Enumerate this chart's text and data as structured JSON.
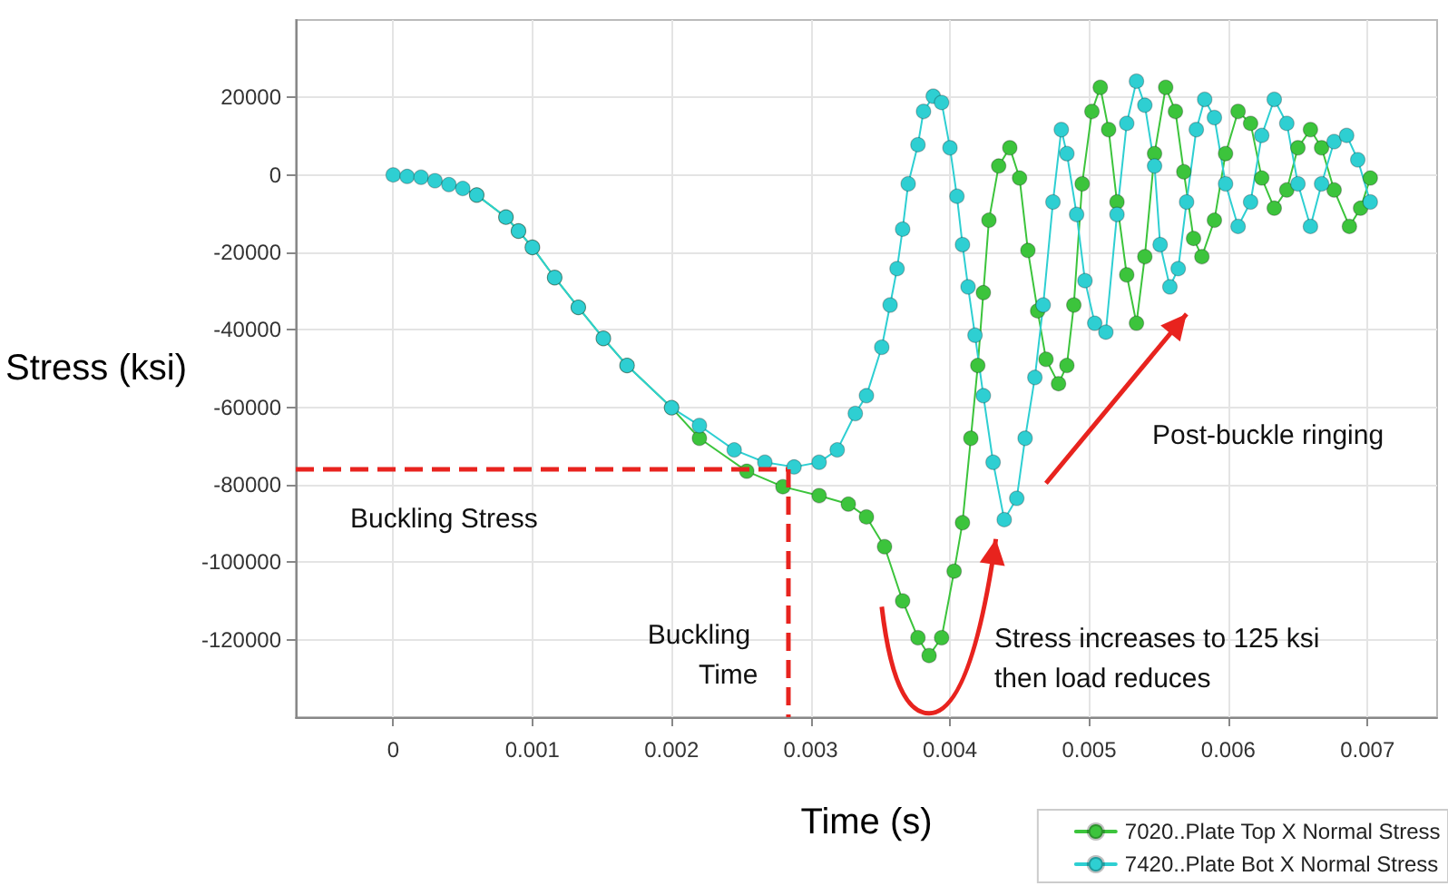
{
  "chart_data": {
    "type": "line",
    "xlabel": "Time (s)",
    "ylabel": "Stress (ksi)",
    "xlim": [
      -0.0007,
      0.0075
    ],
    "xticks": [
      0,
      0.001,
      0.002,
      0.003,
      0.004,
      0.005,
      0.006,
      0.007
    ],
    "ylim": [
      -140000,
      40000
    ],
    "yticks": [
      -120000,
      -100000,
      -80000,
      -60000,
      -40000,
      -20000,
      0,
      20000
    ],
    "grid": true,
    "legend": "bottom right",
    "marker": "circle",
    "line_style": "solid",
    "series": [
      {
        "name": "7020..Plate Top X Normal Stress",
        "color": "#3cc43c",
        "x": [
          0.0006,
          0.00081,
          0.0009,
          0.001,
          0.00116,
          0.00133,
          0.00151,
          0.00168,
          0.002,
          0.0022,
          0.00254,
          0.0028,
          0.00306,
          0.00327,
          0.0034,
          0.00353,
          0.00366,
          0.00377,
          0.00385,
          0.00394,
          0.00403,
          0.00409,
          0.00415,
          0.0042,
          0.00424,
          0.00428,
          0.00435,
          0.00443,
          0.0045,
          0.00456,
          0.00463,
          0.00469,
          0.00478,
          0.00484,
          0.00489,
          0.00495,
          0.00502,
          0.00508,
          0.00514,
          0.0052,
          0.00527,
          0.00534,
          0.0054,
          0.00547,
          0.00555,
          0.00562,
          0.00568,
          0.00575,
          0.00581,
          0.0059,
          0.00598,
          0.00607,
          0.00616,
          0.00624,
          0.00633,
          0.00642,
          0.0065,
          0.00659,
          0.00667,
          0.00676,
          0.00687,
          0.00695,
          0.00702
        ],
        "values": [
          -5200,
          -10900,
          -14500,
          -18700,
          -26500,
          -34200,
          -42200,
          -49200,
          -60100,
          -68000,
          -76500,
          -80500,
          -82800,
          -85000,
          -88300,
          -96000,
          -110000,
          -119500,
          -124100,
          -119500,
          -102300,
          -89800,
          -68000,
          -49200,
          -30400,
          -11700,
          2300,
          7000,
          -800,
          -19500,
          -35100,
          -47600,
          -53900,
          -49200,
          -33600,
          -2300,
          16400,
          22600,
          11700,
          -7000,
          -25800,
          -38300,
          -21100,
          5500,
          22600,
          16400,
          800,
          -16400,
          -21100,
          -11700,
          5500,
          16400,
          13300,
          -800,
          -8600,
          -3900,
          7000,
          11700,
          7000,
          -3900,
          -13300,
          -8600,
          -800
        ]
      },
      {
        "name": "7420..Plate Bot X Normal Stress",
        "color": "#2ecfd2",
        "x": [
          0,
          0.0001,
          0.0002,
          0.0003,
          0.0004,
          0.0005,
          0.0006,
          0.00081,
          0.0009,
          0.001,
          0.00116,
          0.00133,
          0.00151,
          0.00168,
          0.002,
          0.0022,
          0.00245,
          0.00267,
          0.00288,
          0.00306,
          0.00319,
          0.00332,
          0.0034,
          0.00351,
          0.00357,
          0.00362,
          0.00366,
          0.0037,
          0.00377,
          0.00381,
          0.00388,
          0.00394,
          0.004,
          0.00405,
          0.00409,
          0.00413,
          0.00418,
          0.00424,
          0.00431,
          0.00439,
          0.00448,
          0.00454,
          0.00461,
          0.00467,
          0.00474,
          0.0048,
          0.00484,
          0.00491,
          0.00497,
          0.00504,
          0.00512,
          0.0052,
          0.00527,
          0.00534,
          0.0054,
          0.00547,
          0.00551,
          0.00558,
          0.00564,
          0.0057,
          0.00577,
          0.00583,
          0.0059,
          0.00598,
          0.00607,
          0.00616,
          0.00624,
          0.00633,
          0.00642,
          0.0065,
          0.00659,
          0.00667,
          0.00676,
          0.00685,
          0.00693,
          0.00702
        ],
        "values": [
          0,
          -400,
          -600,
          -1500,
          -2500,
          -3500,
          -5200,
          -10900,
          -14500,
          -18700,
          -26500,
          -34200,
          -42200,
          -49200,
          -60100,
          -64700,
          -71000,
          -74200,
          -75400,
          -74200,
          -71000,
          -61600,
          -57000,
          -44500,
          -33600,
          -24200,
          -14000,
          -2300,
          7800,
          16400,
          20300,
          18700,
          7000,
          -5500,
          -18000,
          -28900,
          -41400,
          -57000,
          -74200,
          -89000,
          -83500,
          -68000,
          -52300,
          -33600,
          -7000,
          11700,
          5500,
          -10200,
          -27300,
          -38300,
          -40600,
          -10200,
          13300,
          24200,
          18000,
          2300,
          -18000,
          -28900,
          -24200,
          -7000,
          11700,
          19500,
          14800,
          -2300,
          -13300,
          -7000,
          10200,
          19500,
          13300,
          -2300,
          -13300,
          -2300,
          8600,
          10200,
          3900,
          -7000
        ]
      }
    ],
    "ref_lines": [
      {
        "axis": "y",
        "value": -76000,
        "label": "Buckling Stress",
        "color": "#e8231e",
        "line_style": "dashed"
      },
      {
        "axis": "x",
        "value": 0.00283,
        "label": "Buckling Time",
        "color": "#e8231e",
        "line_style": "dashed"
      }
    ],
    "annotations": [
      "Stress increases to 125 ksi then load reduces",
      "Post-buckle ringing"
    ]
  }
}
